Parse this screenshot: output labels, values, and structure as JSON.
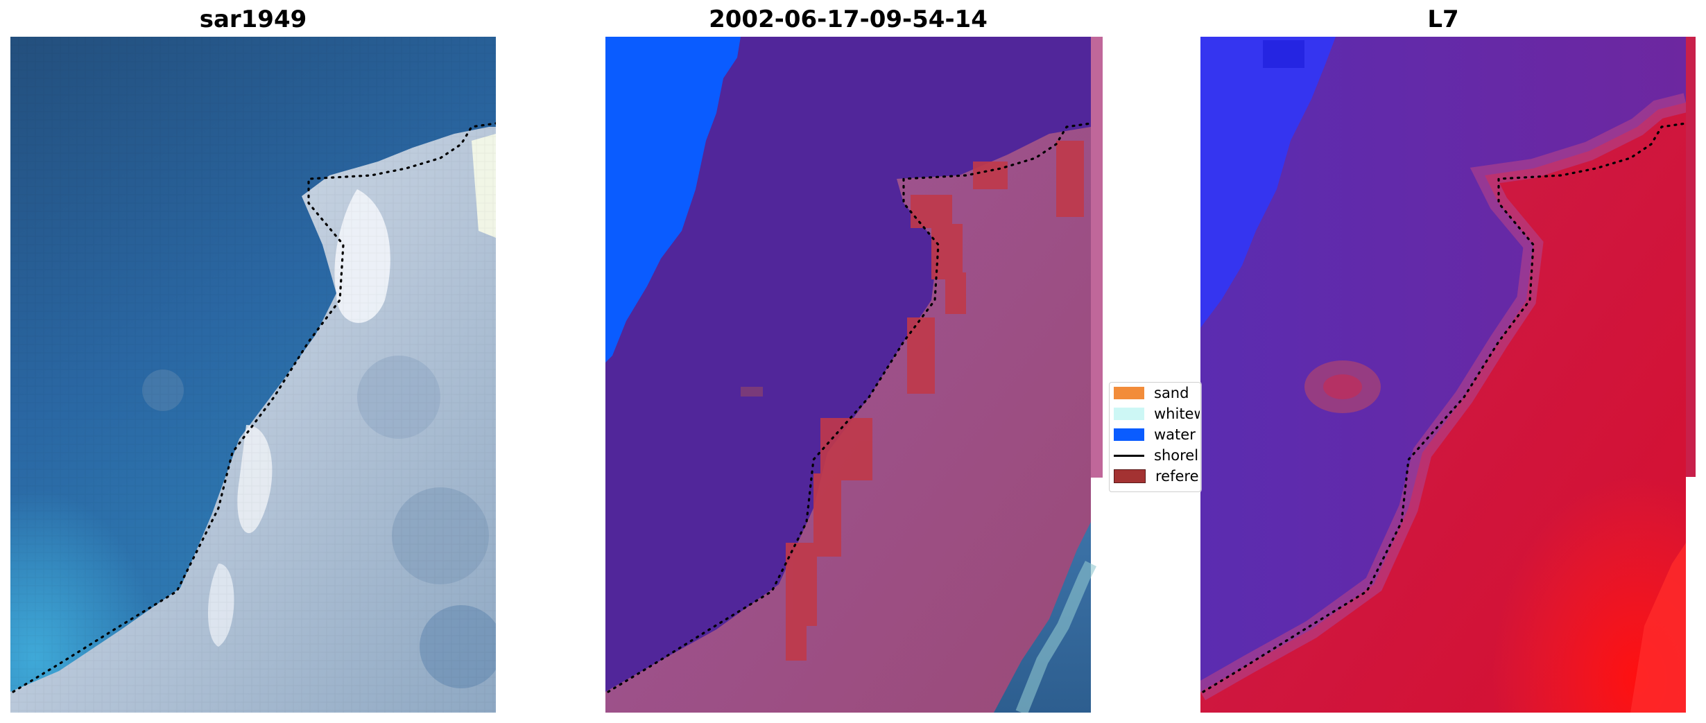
{
  "figure": {
    "panels": [
      {
        "title": "sar1949"
      },
      {
        "title": "2002-06-17-09-54-14"
      },
      {
        "title": "L7"
      }
    ]
  },
  "legend": {
    "items": [
      {
        "label": "sand",
        "color": "#f28c3a",
        "kind": "patch"
      },
      {
        "label": "whitewater",
        "color": "#cdf7f5",
        "kind": "patch"
      },
      {
        "label": "water",
        "color": "#0a5cff",
        "kind": "patch"
      },
      {
        "label": "shoreline",
        "color": "#000000",
        "kind": "line"
      },
      {
        "label": "reference",
        "color": "#a33232",
        "kind": "patch"
      }
    ]
  },
  "colors": {
    "rgb_water": "#2d5e8f",
    "rgb_surf": "#c7d4e2",
    "class_purple": "#4f2a92",
    "class_water": "#0a5cff",
    "class_sand_tint": "#a5507f",
    "class_reference": "#c0394a",
    "l7_blue": "#3a3ae8",
    "l7_purple": "#6a2aa8",
    "l7_red": "#cc1638",
    "l7_bright_red": "#ff2020"
  }
}
